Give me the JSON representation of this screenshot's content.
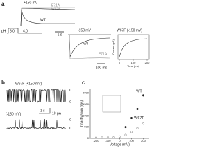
{
  "panel_a": {
    "label": "a",
    "voltage_pos": "+150 mV",
    "trace_labels": [
      "E71A",
      "W67F"
    ],
    "wt_label": "WT",
    "ph_label": "pH",
    "ph_start": "8.0",
    "ph_end": "4.0",
    "time_scale": "1 s",
    "voltage_neg": "-150 mV",
    "wt_label_2": "WT",
    "e71a_label_2": "E71A",
    "time_scale_2": "100 ms",
    "inset_title": "W67F (-150 mV)",
    "inset_ylabel": "Current (pA)",
    "inset_xlabel": "Time (ms)",
    "inset_xticks": [
      0,
      100,
      200
    ]
  },
  "panel_b": {
    "label": "b",
    "title": "W67F (+150 mV)",
    "closed_1": "c",
    "open_1": "o",
    "subtitle": "(-150 mV)",
    "time_scale": "1 s",
    "current_scale": "10 pA",
    "open_2": "o",
    "closed_2": "c"
  },
  "chart_data": {
    "type": "scatter",
    "panel_label": "c",
    "xlabel": "Voltage (mV)",
    "ylabel": "τinactivation (ms)",
    "xlim": [
      -250,
      250
    ],
    "ylim": [
      0,
      2200
    ],
    "xticks": [
      -200,
      -100,
      0,
      100,
      200
    ],
    "yticks": [
      0,
      500,
      1000,
      1500,
      2000
    ],
    "series": [
      {
        "name": "WT",
        "color": "#222222",
        "x": [
          50,
          100,
          150,
          200
        ],
        "values": [
          500,
          900,
          1300,
          1900
        ]
      },
      {
        "name": "W67F",
        "color": "#777777",
        "x": [
          -200,
          -150,
          -100,
          -50,
          0,
          50,
          100,
          150,
          200
        ],
        "values": [
          30,
          30,
          40,
          50,
          80,
          150,
          280,
          450,
          650
        ]
      }
    ]
  }
}
